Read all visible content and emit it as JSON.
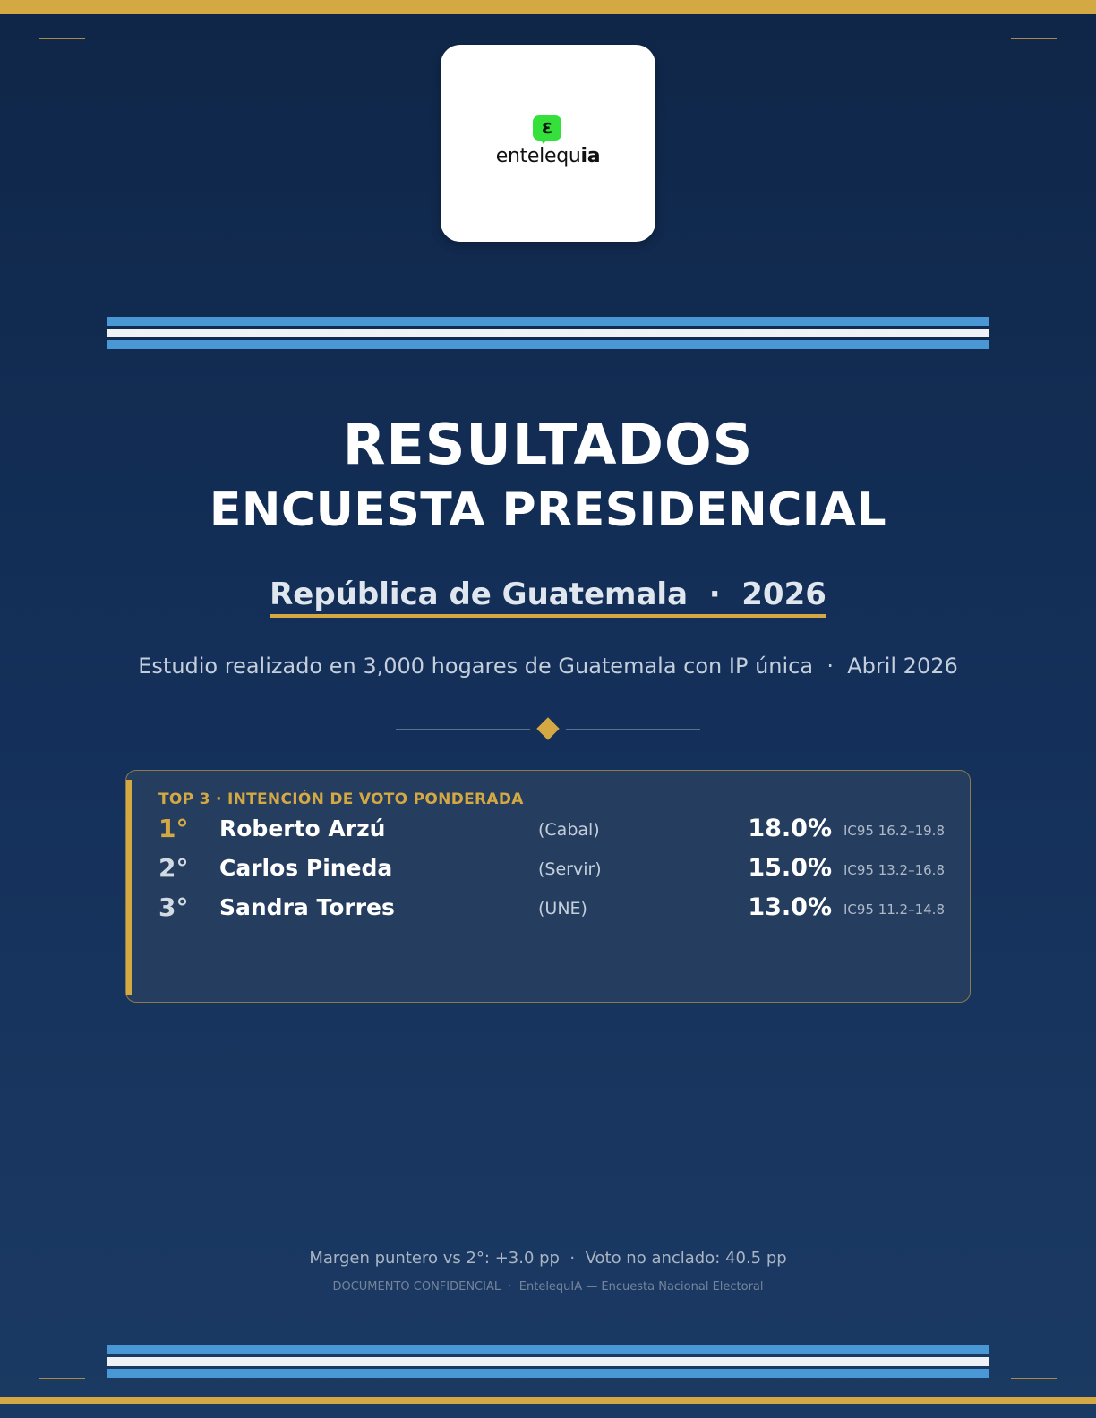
{
  "logo": {
    "mark_glyph": "ɛ",
    "text_regular": "entelequ",
    "text_bold": "ia",
    "mark_color": "#34e03a"
  },
  "title": {
    "line1": "RESULTADOS",
    "line2": "ENCUESTA PRESIDENCIAL"
  },
  "country_line": "República de Guatemala  ·  2026",
  "study_line": "Estudio realizado en 3,000 hogares de Guatemala con IP única  ·  Abril 2026",
  "results": {
    "heading": "TOP 3 · INTENCIÓN DE VOTO PONDERADA",
    "rows": [
      {
        "rank": "1°",
        "name": "Roberto Arzú",
        "party": "(Cabal)",
        "pct": "18.0%",
        "ci": "IC95 16.2–19.8"
      },
      {
        "rank": "2°",
        "name": "Carlos Pineda",
        "party": "(Servir)",
        "pct": "15.0%",
        "ci": "IC95 13.2–16.8"
      },
      {
        "rank": "3°",
        "name": "Sandra Torres",
        "party": "(UNE)",
        "pct": "13.0%",
        "ci": "IC95 11.2–14.8"
      }
    ]
  },
  "footer": {
    "margin_line": "Margen puntero vs 2°: +3.0 pp  ·  Voto no anclado: 40.5 pp",
    "confidential_line": "DOCUMENTO CONFIDENCIAL  ·  EntelequIA — Encuesta Nacional Electoral"
  },
  "colors": {
    "background": "#14305a",
    "gold": "#d4a843",
    "flag_blue": "#4a97d6",
    "flag_white": "#eef2f6"
  }
}
